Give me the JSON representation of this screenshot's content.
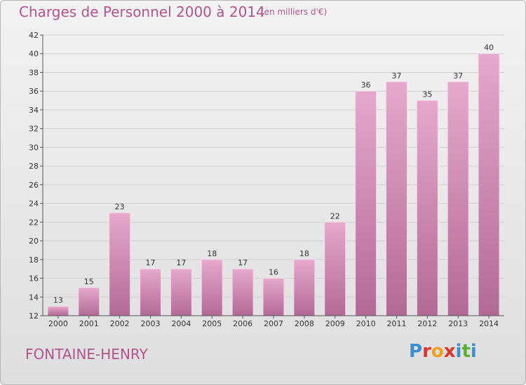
{
  "header": {
    "title": "Charges de Personnel 2000 à 2014",
    "subtitle": "(en milliers d'€)"
  },
  "footer": {
    "commune": "FONTAINE-HENRY",
    "logo_text": "Proxiti",
    "logo_colors": [
      "#3a8fd0",
      "#e0352b",
      "#f0a020",
      "#e0352b",
      "#3a8fd0",
      "#5cb030",
      "#3a8fd0"
    ]
  },
  "colors": {
    "bar_top": "#e6a8cb",
    "bar_bottom": "#b26a95",
    "accent": "#b0558c",
    "grid": "#cfcfcf"
  },
  "chart_data": {
    "type": "bar",
    "title": "Charges de Personnel 2000 à 2014",
    "subtitle": "(en milliers d'€)",
    "categories": [
      "2000",
      "2001",
      "2002",
      "2003",
      "2004",
      "2005",
      "2006",
      "2007",
      "2008",
      "2009",
      "2010",
      "2011",
      "2012",
      "2013",
      "2014"
    ],
    "values": [
      13,
      15,
      23,
      17,
      17,
      18,
      17,
      16,
      18,
      22,
      36,
      37,
      35,
      37,
      40
    ],
    "ylim": [
      12,
      42
    ],
    "yticks": [
      12,
      14,
      16,
      18,
      20,
      22,
      24,
      26,
      28,
      30,
      32,
      34,
      36,
      38,
      40,
      42
    ],
    "grid": true
  }
}
